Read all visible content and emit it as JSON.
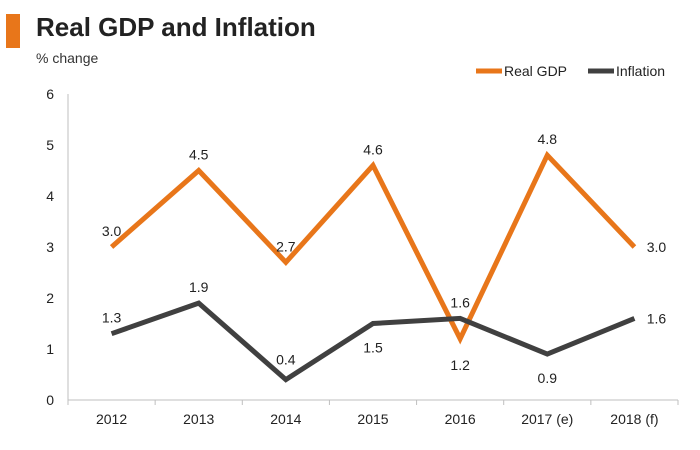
{
  "title": "Real GDP and Inflation",
  "subtitle": "% change",
  "colors": {
    "accent": "#E8761A",
    "real_gdp": "#E8761A",
    "inflation": "#404040",
    "axis": "#bfbfbf"
  },
  "chart_data": {
    "type": "line",
    "title": "Real GDP and Inflation",
    "ylabel": "% change",
    "xlabel": "",
    "categories": [
      "2012",
      "2013",
      "2014",
      "2015",
      "2016",
      "2017 (e)",
      "2018 (f)"
    ],
    "ylim": [
      0,
      6
    ],
    "yticks": [
      "0",
      "1",
      "2",
      "3",
      "4",
      "5",
      "6"
    ],
    "grid": false,
    "legend": "top-right",
    "series": [
      {
        "name": "Real GDP",
        "color": "#E8761A",
        "values": [
          3.0,
          4.5,
          2.7,
          4.6,
          1.2,
          4.8,
          3.0
        ],
        "labels": [
          "3.0",
          "4.5",
          "2.7",
          "4.6",
          "1.2",
          "4.8",
          "3.0"
        ]
      },
      {
        "name": "Inflation",
        "color": "#404040",
        "values": [
          1.3,
          1.9,
          0.4,
          1.5,
          1.6,
          0.9,
          1.6
        ],
        "labels": [
          "1.3",
          "1.9",
          "0.4",
          "1.5",
          "1.6",
          "0.9",
          "1.6"
        ]
      }
    ]
  }
}
